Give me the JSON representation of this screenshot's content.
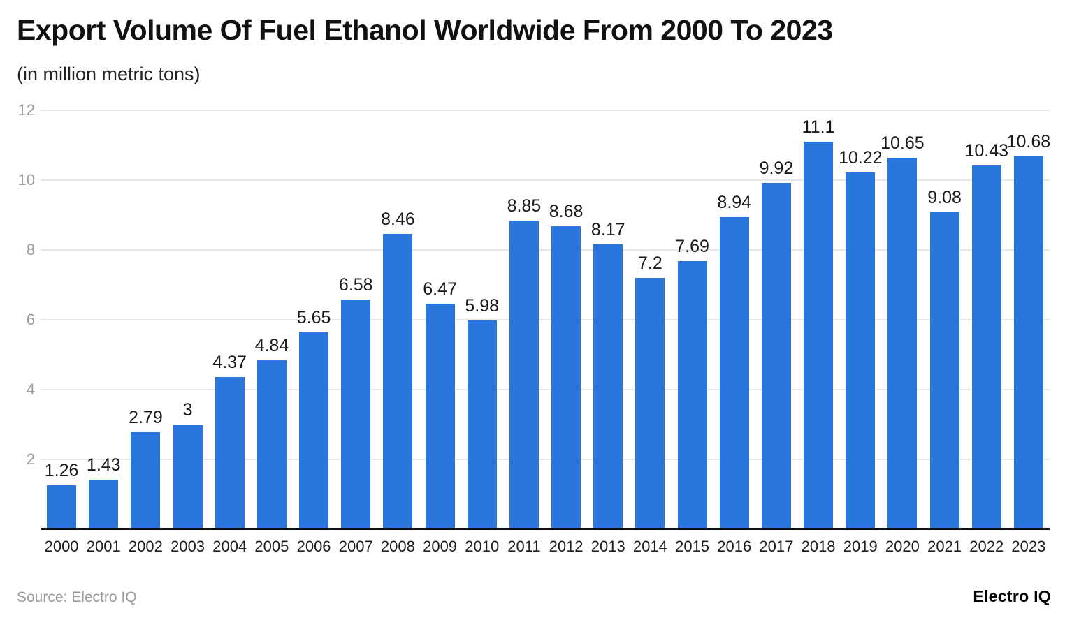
{
  "header": {
    "title": "Export Volume Of Fuel Ethanol Worldwide From 2000 To 2023",
    "subtitle": "(in million metric tons)"
  },
  "footer": {
    "source": "Source: Electro IQ",
    "brand": "Electro IQ"
  },
  "colors": {
    "bar": "#2b76dd",
    "gridline": "#e8e8e8",
    "y_tick_text": "#9e9e9e",
    "x_tick_text": "#1f1f1f",
    "value_label_text": "#1a1a1a",
    "axis_line": "#111111"
  },
  "chart_data": {
    "type": "bar",
    "title": "Export Volume Of Fuel Ethanol Worldwide From 2000 To 2023",
    "subtitle": "(in million metric tons)",
    "xlabel": "",
    "ylabel": "",
    "categories": [
      "2000",
      "2001",
      "2002",
      "2003",
      "2004",
      "2005",
      "2006",
      "2007",
      "2008",
      "2009",
      "2010",
      "2011",
      "2012",
      "2013",
      "2014",
      "2015",
      "2016",
      "2017",
      "2018",
      "2019",
      "2020",
      "2021",
      "2022",
      "2023"
    ],
    "values": [
      1.26,
      1.43,
      2.79,
      3,
      4.37,
      4.84,
      5.65,
      6.58,
      8.46,
      6.47,
      5.98,
      8.85,
      8.68,
      8.17,
      7.2,
      7.69,
      8.94,
      9.92,
      11.1,
      10.22,
      10.65,
      9.08,
      10.43,
      10.68
    ],
    "ylim": [
      0,
      12
    ],
    "yticks": [
      2,
      4,
      6,
      8,
      10,
      12
    ],
    "grid": true,
    "legend": "none",
    "value_labels": true
  }
}
